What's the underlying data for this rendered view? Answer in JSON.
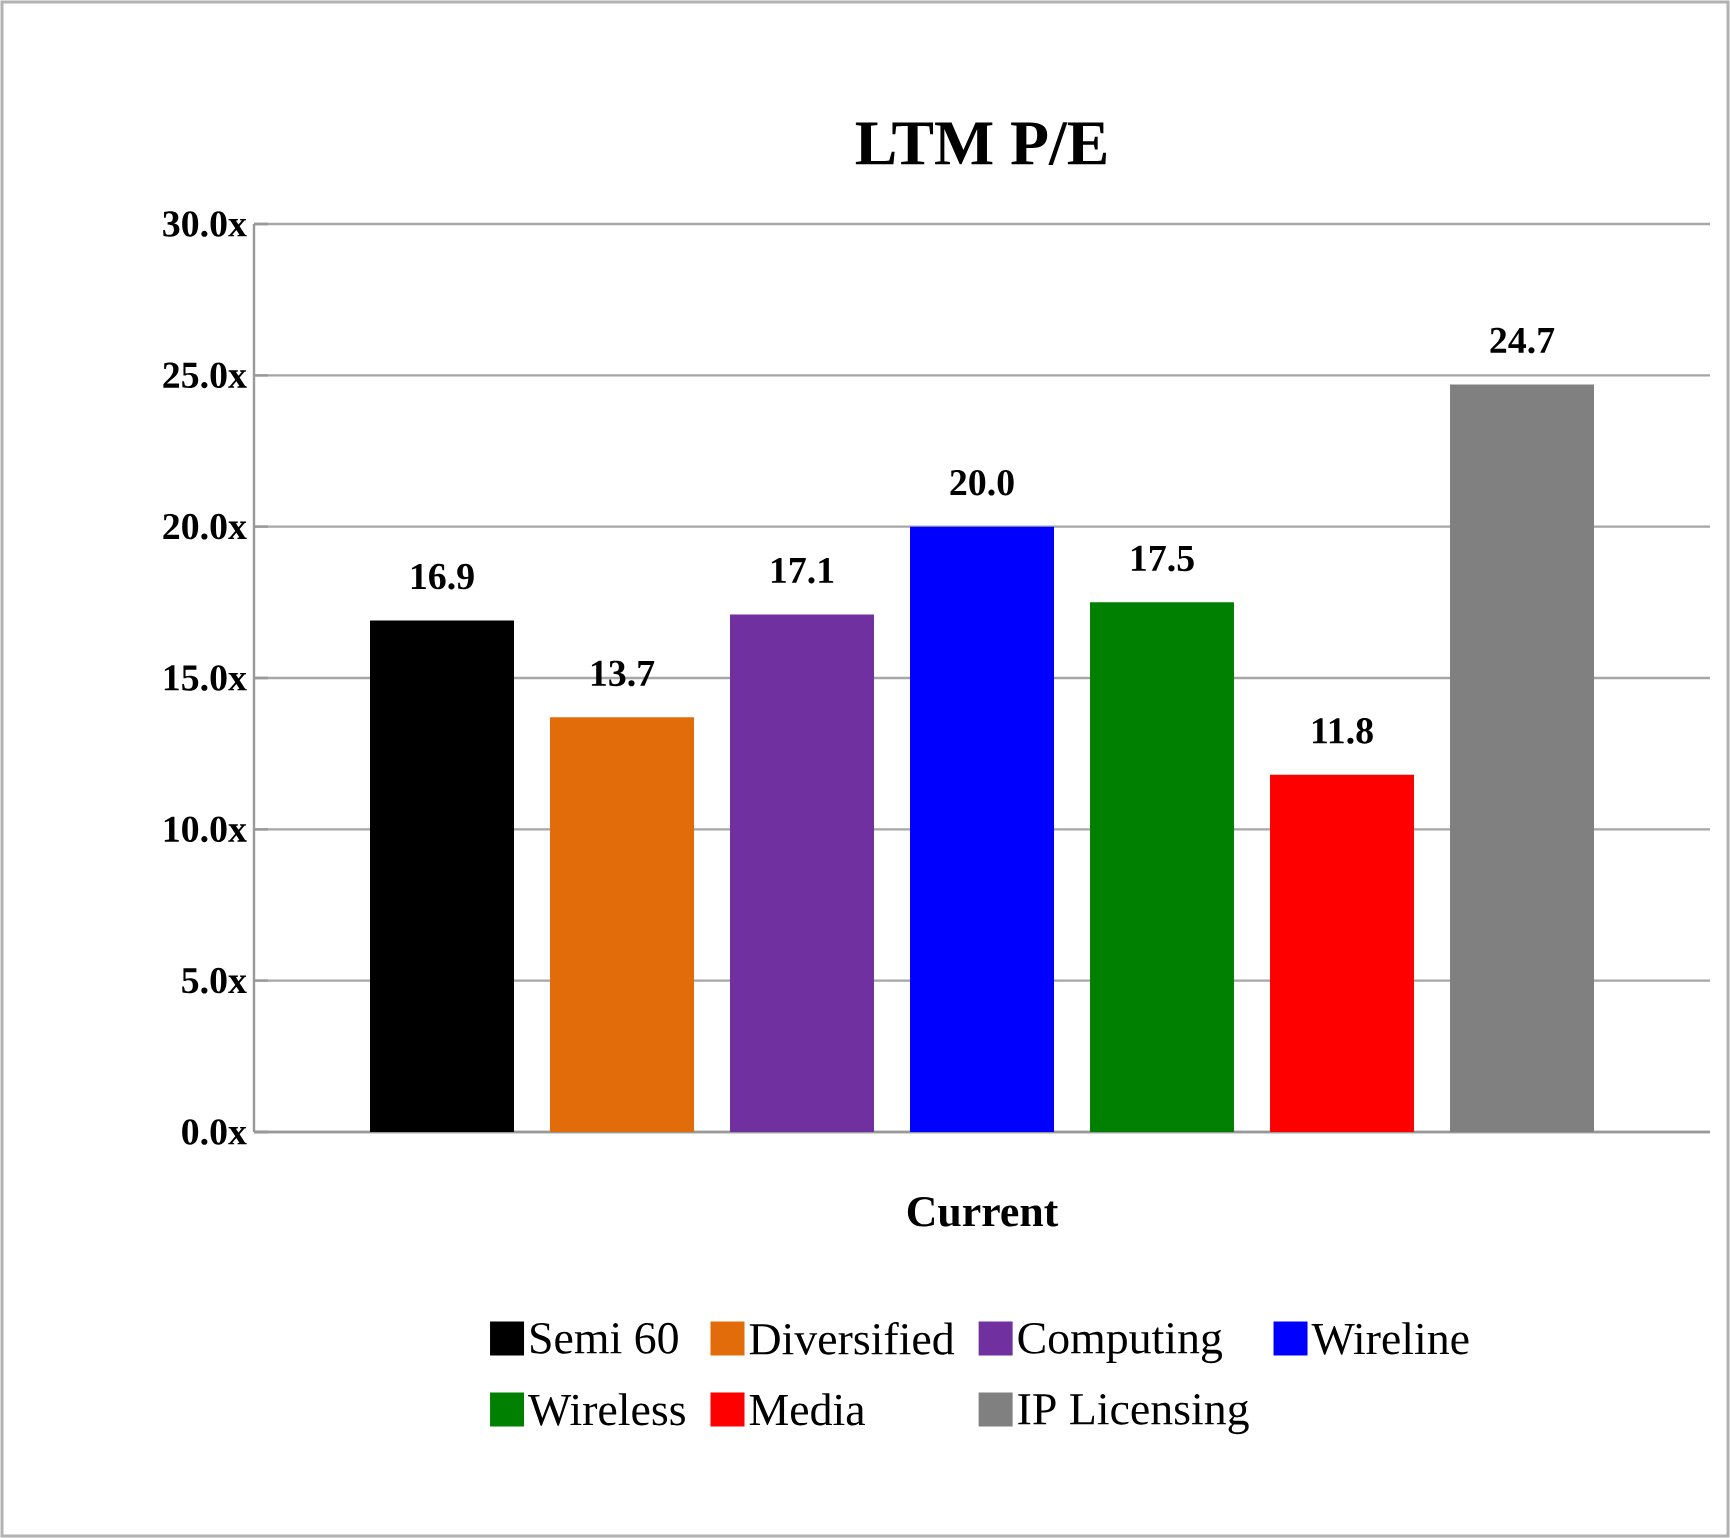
{
  "chart_data": {
    "type": "bar",
    "title": "LTM P/E",
    "categories": [
      "Current"
    ],
    "series": [
      {
        "name": "Semi 60",
        "color": "#000000",
        "values": [
          16.9
        ],
        "value_labels": [
          "16.9"
        ]
      },
      {
        "name": "Diversified",
        "color": "#e36c0a",
        "values": [
          13.7
        ],
        "value_labels": [
          "13.7"
        ]
      },
      {
        "name": "Computing",
        "color": "#7030a0",
        "values": [
          17.1
        ],
        "value_labels": [
          "17.1"
        ]
      },
      {
        "name": "Wireline",
        "color": "#0000ff",
        "values": [
          20.0
        ],
        "value_labels": [
          "20.0"
        ]
      },
      {
        "name": "Wireless",
        "color": "#008000",
        "values": [
          17.5
        ],
        "value_labels": [
          "17.5"
        ]
      },
      {
        "name": "Media",
        "color": "#ff0000",
        "values": [
          11.8
        ],
        "value_labels": [
          "11.8"
        ]
      },
      {
        "name": "IP Licensing",
        "color": "#808080",
        "values": [
          24.7
        ],
        "value_labels": [
          "24.7"
        ]
      }
    ],
    "ylim": [
      0,
      30
    ],
    "yticks": [
      {
        "value": 0,
        "label": "0.0x"
      },
      {
        "value": 5,
        "label": "5.0x"
      },
      {
        "value": 10,
        "label": "10.0x"
      },
      {
        "value": 15,
        "label": "15.0x"
      },
      {
        "value": 20,
        "label": "20.0x"
      },
      {
        "value": 25,
        "label": "25.0x"
      },
      {
        "value": 30,
        "label": "30.0x"
      }
    ],
    "grid": "y",
    "legend": "bottom"
  }
}
